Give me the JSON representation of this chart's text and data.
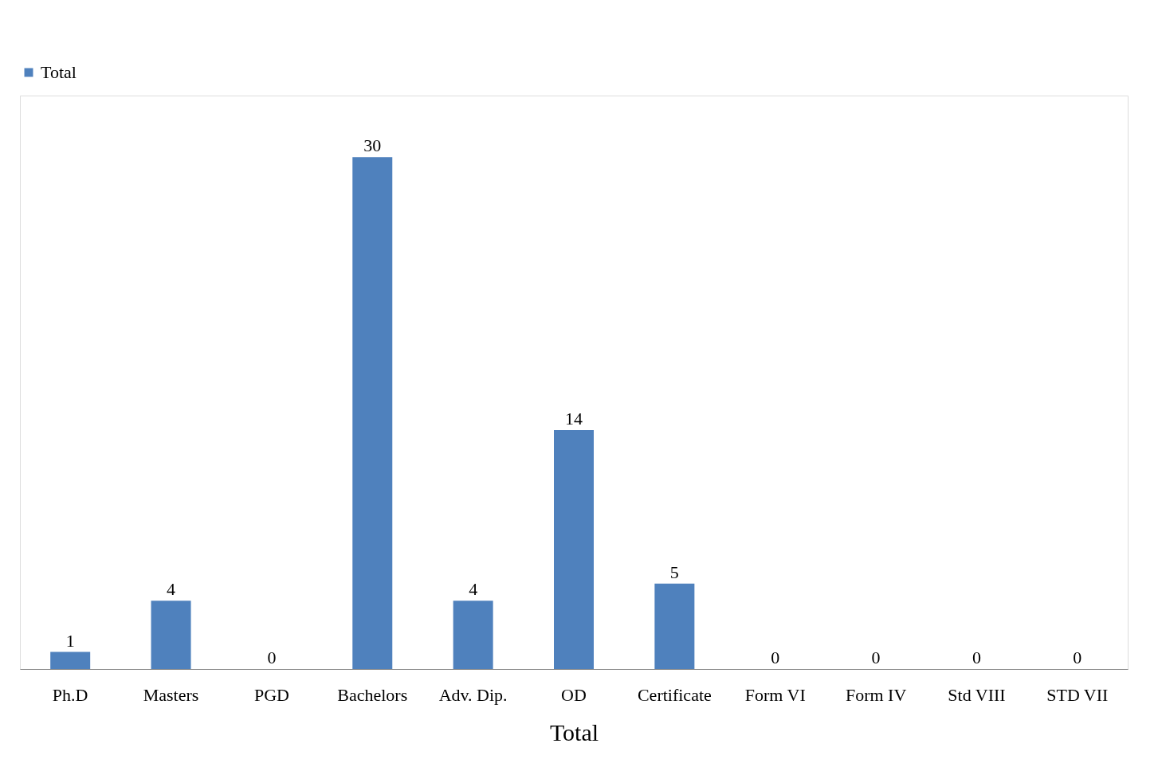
{
  "chart_data": {
    "type": "bar",
    "xlabel": "Total",
    "categories": [
      "Ph.D",
      "Masters",
      "PGD",
      "Bachelors",
      "Adv. Dip.",
      "OD",
      "Certificate",
      "Form VI",
      "Form IV",
      "Std VIII",
      "STD VII"
    ],
    "series": [
      {
        "name": "Total",
        "color": "#4f81bd",
        "values": [
          1,
          4,
          0,
          30,
          4,
          14,
          5,
          0,
          0,
          0,
          0
        ]
      }
    ],
    "data_labels": true,
    "legend": "top"
  }
}
